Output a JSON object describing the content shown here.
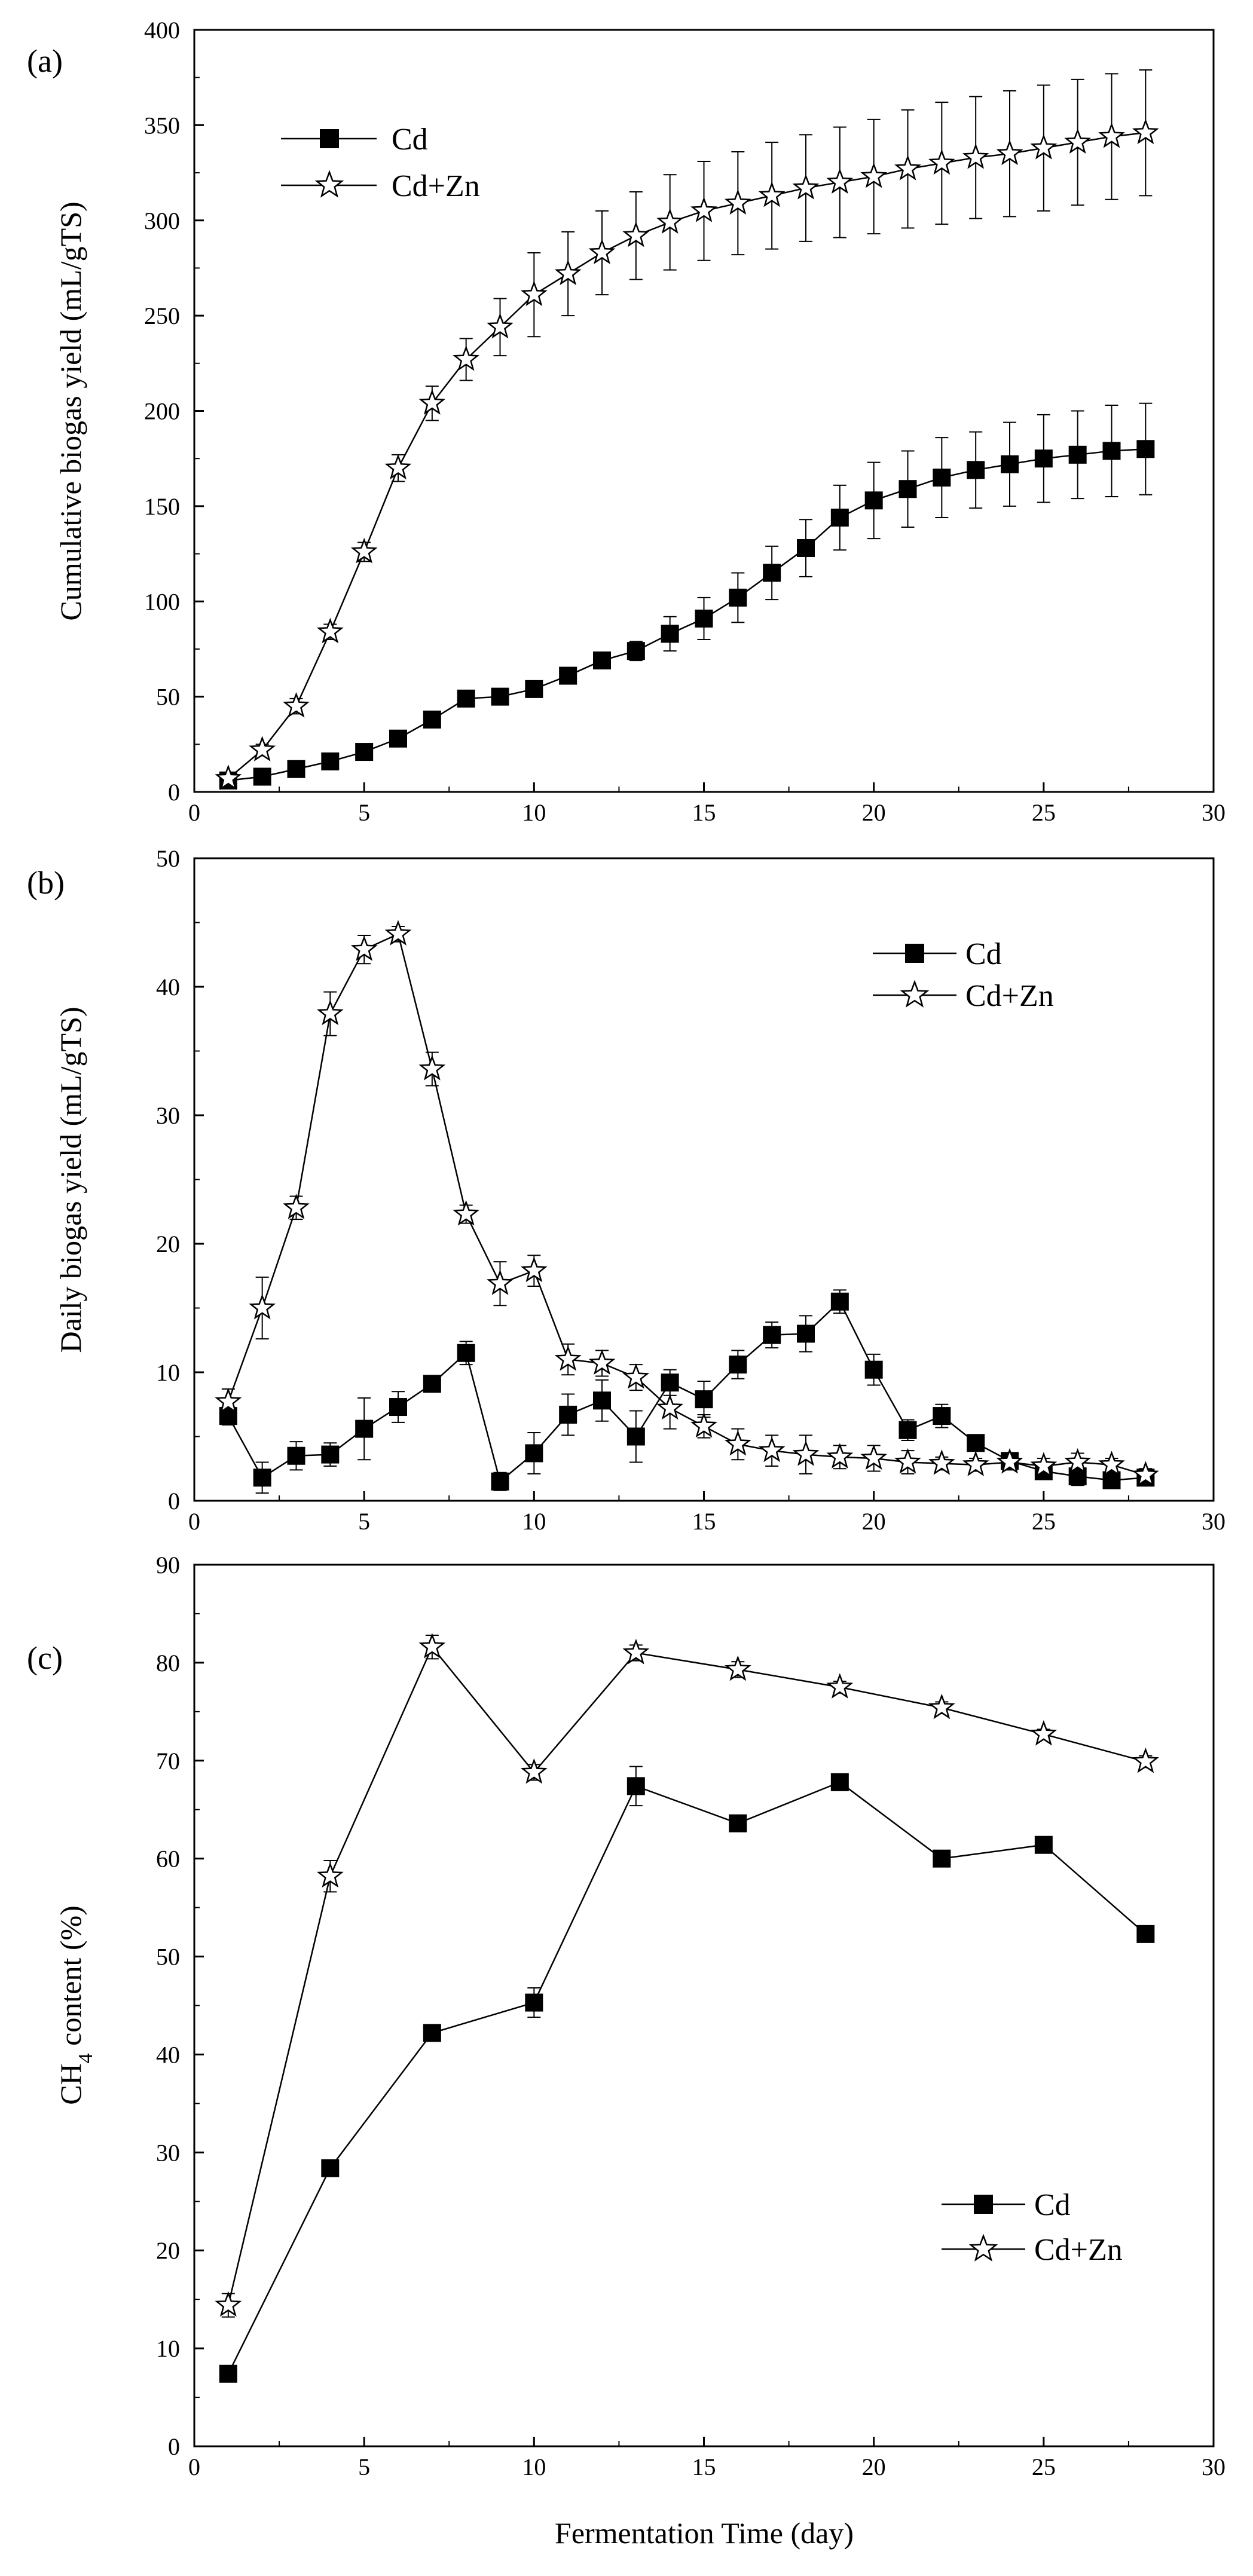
{
  "figure": {
    "xlabel": "Fermentation Time (day)"
  },
  "chart_data": [
    {
      "panel": "(a)",
      "type": "line",
      "title": "",
      "xlabel": "",
      "ylabel": "Cumulative biogas yield (mL/gTS)",
      "xlim": [
        0,
        30
      ],
      "ylim": [
        0,
        400
      ],
      "xticks": [
        0,
        5,
        10,
        15,
        20,
        25,
        30
      ],
      "yticks": [
        0,
        50,
        100,
        150,
        200,
        250,
        300,
        350,
        400
      ],
      "legend": "top-left",
      "series": [
        {
          "name": "Cd",
          "marker": "square",
          "x": [
            1,
            2,
            3,
            4,
            5,
            6,
            7,
            8,
            9,
            10,
            11,
            12,
            13,
            14,
            15,
            16,
            17,
            18,
            19,
            20,
            21,
            22,
            23,
            24,
            25,
            26,
            27,
            28
          ],
          "values": [
            6,
            8,
            12,
            16,
            21,
            28,
            38,
            49,
            50,
            54,
            61,
            69,
            74,
            83,
            91,
            102,
            115,
            128,
            144,
            153,
            159,
            165,
            169,
            172,
            175,
            177,
            179,
            180
          ],
          "errors": [
            1,
            1,
            1,
            1,
            1,
            1,
            2,
            2,
            2,
            2,
            3,
            4,
            5,
            9,
            11,
            13,
            14,
            15,
            17,
            20,
            20,
            21,
            20,
            22,
            23,
            23,
            24,
            24
          ]
        },
        {
          "name": "Cd+Zn",
          "marker": "star",
          "x": [
            1,
            2,
            3,
            4,
            5,
            6,
            7,
            8,
            9,
            10,
            11,
            12,
            13,
            14,
            15,
            16,
            17,
            18,
            19,
            20,
            21,
            22,
            23,
            24,
            25,
            26,
            27,
            28
          ],
          "values": [
            7,
            22,
            45,
            84,
            126,
            170,
            204,
            227,
            244,
            261,
            272,
            283,
            292,
            299,
            305,
            309,
            313,
            317,
            320,
            323,
            327,
            330,
            333,
            335,
            338,
            341,
            344,
            346
          ],
          "errors": [
            1,
            3,
            4,
            4,
            5,
            7,
            9,
            11,
            15,
            22,
            22,
            22,
            23,
            25,
            26,
            27,
            28,
            28,
            29,
            30,
            31,
            32,
            32,
            33,
            33,
            33,
            33,
            33
          ]
        }
      ]
    },
    {
      "panel": "(b)",
      "type": "line",
      "title": "",
      "xlabel": "",
      "ylabel": "Daily biogas yield (mL/gTS)",
      "xlim": [
        0,
        30
      ],
      "ylim": [
        0,
        50
      ],
      "xticks": [
        0,
        5,
        10,
        15,
        20,
        25,
        30
      ],
      "yticks": [
        0,
        10,
        20,
        30,
        40,
        50
      ],
      "legend": "top-right",
      "series": [
        {
          "name": "Cd",
          "marker": "square",
          "x": [
            1,
            2,
            3,
            4,
            5,
            6,
            7,
            8,
            9,
            10,
            11,
            12,
            13,
            14,
            15,
            16,
            17,
            18,
            19,
            20,
            21,
            22,
            23,
            24,
            25,
            26,
            27,
            28
          ],
          "values": [
            6.6,
            1.8,
            3.5,
            3.6,
            5.6,
            7.3,
            9.1,
            11.5,
            1.5,
            3.7,
            6.7,
            7.8,
            5.0,
            9.2,
            7.9,
            10.6,
            12.9,
            13.0,
            15.5,
            10.2,
            5.5,
            6.6,
            4.5,
            3.1,
            2.3,
            1.9,
            1.6,
            1.8
          ],
          "errors": [
            0.7,
            1.2,
            1.1,
            0.9,
            2.4,
            1.2,
            0.6,
            0.9,
            0.7,
            1.6,
            1.6,
            1.6,
            2.0,
            1.0,
            1.4,
            1.1,
            1.0,
            1.4,
            0.9,
            1.2,
            0.8,
            0.9,
            0.6,
            0.6,
            0.6,
            0.7,
            0.5,
            0.6
          ]
        },
        {
          "name": "Cd+Zn",
          "marker": "star",
          "x": [
            1,
            2,
            3,
            4,
            5,
            6,
            7,
            8,
            9,
            10,
            11,
            12,
            13,
            14,
            15,
            16,
            17,
            18,
            19,
            20,
            21,
            22,
            23,
            24,
            25,
            26,
            27,
            28
          ],
          "values": [
            7.7,
            15.0,
            22.8,
            37.9,
            42.9,
            44.1,
            33.6,
            22.3,
            16.9,
            17.9,
            11.0,
            10.7,
            9.6,
            7.2,
            5.8,
            4.4,
            3.9,
            3.6,
            3.4,
            3.3,
            3.0,
            2.9,
            2.8,
            3.0,
            2.7,
            3.0,
            2.8,
            2.0
          ],
          "errors": [
            1.0,
            2.4,
            0.9,
            1.7,
            1.1,
            0.6,
            1.3,
            0.7,
            1.7,
            1.2,
            1.2,
            1.0,
            1.0,
            1.6,
            0.9,
            1.2,
            1.2,
            1.5,
            0.9,
            1.0,
            0.9,
            0.5,
            0.5,
            0.6,
            0.6,
            0.7,
            0.5,
            0.5
          ]
        }
      ]
    },
    {
      "panel": "(c)",
      "type": "line",
      "title": "",
      "xlabel": "Fermentation Time (day)",
      "ylabel_main": "CH",
      "ylabel_sub": "4",
      "ylabel_rest": " content (%)",
      "xlim": [
        0,
        30
      ],
      "ylim": [
        0,
        90
      ],
      "xticks": [
        0,
        5,
        10,
        15,
        20,
        25,
        30
      ],
      "yticks": [
        0,
        10,
        20,
        30,
        40,
        50,
        60,
        70,
        80,
        90
      ],
      "legend": "bottom-right",
      "series": [
        {
          "name": "Cd",
          "marker": "square",
          "x": [
            1,
            4,
            7,
            10,
            13,
            16,
            19,
            22,
            25,
            28
          ],
          "values": [
            7.4,
            28.4,
            42.2,
            45.3,
            67.4,
            63.6,
            67.8,
            60.0,
            61.4,
            52.3
          ],
          "errors": [
            0,
            0,
            0,
            1.5,
            2.0,
            0.6,
            0,
            0,
            0,
            0
          ]
        },
        {
          "name": "Cd+Zn",
          "marker": "star",
          "x": [
            1,
            4,
            7,
            10,
            13,
            16,
            19,
            22,
            25,
            28
          ],
          "values": [
            14.4,
            58.2,
            81.6,
            68.8,
            81.0,
            79.3,
            77.5,
            75.4,
            72.7,
            69.9
          ],
          "errors": [
            1.2,
            1.6,
            1.2,
            0.8,
            0.8,
            0.8,
            0.6,
            0.6,
            0.5,
            0.6
          ]
        }
      ]
    }
  ]
}
